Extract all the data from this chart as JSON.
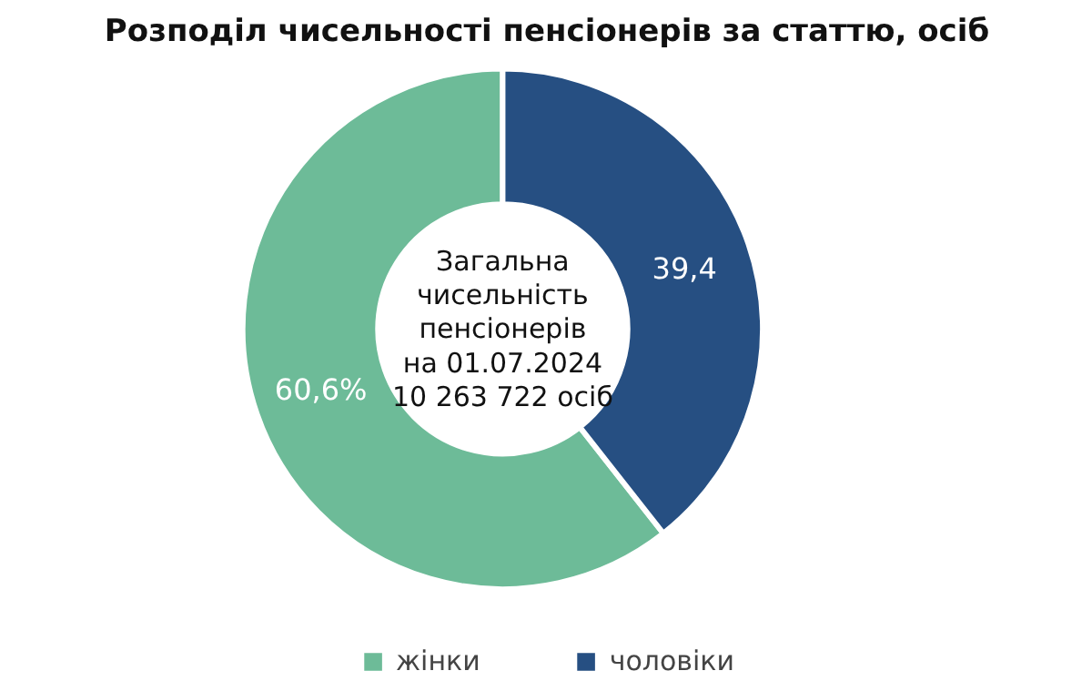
{
  "chart_data": {
    "type": "donut",
    "title": "Розподіл чисельності пенсіонерів за статтю, осіб",
    "categories": [
      "жінки",
      "чоловіки"
    ],
    "values": [
      60.6,
      39.4
    ],
    "colors": [
      "#6dbb98",
      "#264f82"
    ],
    "value_labels": [
      "60,6%",
      "39,4"
    ],
    "annotations": [
      "Загальна\nчисельність\nпенсіонерів\nна 01.07.2024\n10 263 722 осіб"
    ],
    "legend": "bottom"
  }
}
